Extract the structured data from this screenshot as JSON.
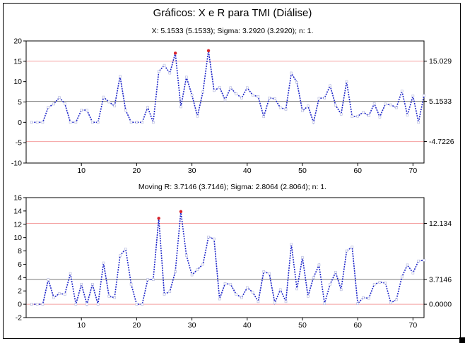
{
  "title": "Gráficos: X e R para TMI (Diálise)",
  "chart_data": [
    {
      "type": "line",
      "name": "X",
      "subtitle": "X: 5.1533 (5.1533); Sigma: 3.2920 (3.2920); n: 1.",
      "x": [
        1,
        2,
        3,
        4,
        5,
        6,
        7,
        8,
        9,
        10,
        11,
        12,
        13,
        14,
        15,
        16,
        17,
        18,
        19,
        20,
        21,
        22,
        23,
        24,
        25,
        26,
        27,
        28,
        29,
        30,
        31,
        32,
        33,
        34,
        35,
        36,
        37,
        38,
        39,
        40,
        41,
        42,
        43,
        44,
        45,
        46,
        47,
        48,
        49,
        50,
        51,
        52,
        53,
        54,
        55,
        56,
        57,
        58,
        59,
        60,
        61,
        62,
        63,
        64,
        65,
        66,
        67,
        68,
        69,
        70,
        71,
        72
      ],
      "values": [
        0,
        0,
        0,
        3.7,
        4.5,
        6.1,
        4.6,
        0,
        0,
        3,
        3,
        0,
        0,
        6.2,
        5,
        4,
        11.3,
        3,
        0,
        0,
        0,
        3.7,
        0,
        12.5,
        14,
        12.1,
        17,
        3.8,
        11.1,
        6.7,
        1.5,
        7.5,
        17.6,
        7.8,
        8.6,
        5.5,
        8.5,
        7,
        6,
        8.5,
        6.7,
        6.3,
        1.4,
        6,
        5.8,
        3.6,
        3.2,
        12.1,
        9.8,
        2.8,
        4,
        0,
        5.9,
        6,
        9,
        4.2,
        2,
        10,
        1.4,
        1.5,
        2.5,
        1.6,
        4.6,
        1.3,
        4.5,
        4.3,
        3.6,
        7.7,
        1.8,
        6.5,
        0,
        6.6
      ],
      "out_of_control": [
        27,
        33
      ],
      "center": 5.1533,
      "ucl": 15.029,
      "lcl": -4.7226,
      "right_labels": [
        "15.029",
        "5.1533",
        "-4.7226"
      ],
      "ylim": [
        -10,
        20
      ],
      "yticks": [
        -10,
        -5,
        0,
        5,
        10,
        15,
        20
      ],
      "xlim": [
        0,
        72
      ],
      "xticks": [
        10,
        20,
        30,
        40,
        50,
        60,
        70
      ]
    },
    {
      "type": "line",
      "name": "Moving R",
      "subtitle": "Moving R: 3.7146 (3.7146); Sigma: 2.8064 (2.8064); n: 1.",
      "x": [
        1,
        2,
        3,
        4,
        5,
        6,
        7,
        8,
        9,
        10,
        11,
        12,
        13,
        14,
        15,
        16,
        17,
        18,
        19,
        20,
        21,
        22,
        23,
        24,
        25,
        26,
        27,
        28,
        29,
        30,
        31,
        32,
        33,
        34,
        35,
        36,
        37,
        38,
        39,
        40,
        41,
        42,
        43,
        44,
        45,
        46,
        47,
        48,
        49,
        50,
        51,
        52,
        53,
        54,
        55,
        56,
        57,
        58,
        59,
        60,
        61,
        62,
        63,
        64,
        65,
        66,
        67,
        68,
        69,
        70,
        71,
        72
      ],
      "values": [
        0,
        0,
        0,
        3.7,
        1,
        1.6,
        1.5,
        4.6,
        0,
        3,
        0,
        3,
        0,
        6.2,
        1.2,
        1,
        7.3,
        8.3,
        3,
        0,
        0,
        3.7,
        3.7,
        12.9,
        1.5,
        1.9,
        4.9,
        13.9,
        7.3,
        4.4,
        5.2,
        6,
        10.1,
        9.8,
        0.8,
        3.1,
        3,
        1.5,
        1,
        2.5,
        1.8,
        0.4,
        4.9,
        4.6,
        0.2,
        2.2,
        0.4,
        9,
        2.3,
        7,
        1.2,
        4,
        5.9,
        0.1,
        3,
        4.8,
        2.2,
        8,
        8.6,
        0.1,
        1,
        0.9,
        3,
        3.3,
        3.2,
        0.2,
        0.7,
        4.1,
        5.9,
        4.7,
        6.5,
        6.6
      ],
      "out_of_control": [
        24,
        28
      ],
      "center": 3.7146,
      "ucl": 12.134,
      "lcl": 0,
      "right_labels": [
        "12.134",
        "3.7146",
        "0.0000"
      ],
      "ylim": [
        -2,
        16
      ],
      "yticks": [
        -2,
        0,
        2,
        4,
        6,
        8,
        10,
        12,
        14,
        16
      ],
      "xlim": [
        0,
        72
      ],
      "xticks": [
        10,
        20,
        30,
        40,
        50,
        60,
        70
      ]
    }
  ]
}
